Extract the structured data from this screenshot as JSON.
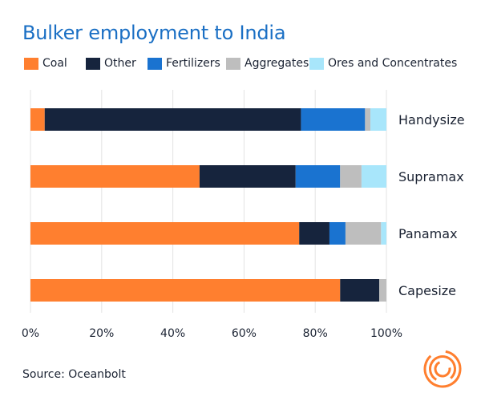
{
  "title": "Bulker employment to India",
  "source": "Source: Oceanbolt",
  "logo_icon": "oceanbolt-spiral-logo",
  "colors": {
    "Coal": "#ff7f2f",
    "Other": "#16243d",
    "Fertilizers": "#1a73d0",
    "Aggregates": "#bebebe",
    "Ores and Concentrates": "#a8e6fb"
  },
  "chart_data": {
    "type": "bar",
    "orientation": "horizontal",
    "stacked": true,
    "title": "Bulker employment to India",
    "categories": [
      "Handysize",
      "Supramax",
      "Panamax",
      "Capesize"
    ],
    "series": [
      {
        "name": "Coal",
        "values": [
          4,
          47.5,
          75.5,
          87
        ]
      },
      {
        "name": "Other",
        "values": [
          72,
          27,
          8.5,
          11
        ]
      },
      {
        "name": "Fertilizers",
        "values": [
          18,
          12.5,
          4.5,
          0
        ]
      },
      {
        "name": "Aggregates",
        "values": [
          1.5,
          6,
          10,
          2
        ]
      },
      {
        "name": "Ores and Concentrates",
        "values": [
          4.5,
          7,
          1.5,
          0
        ]
      }
    ],
    "xlim": [
      0,
      100
    ],
    "x_ticks": [
      "0%",
      "20%",
      "40%",
      "60%",
      "80%",
      "100%"
    ],
    "grid": "vertical",
    "legend_position": "top"
  }
}
